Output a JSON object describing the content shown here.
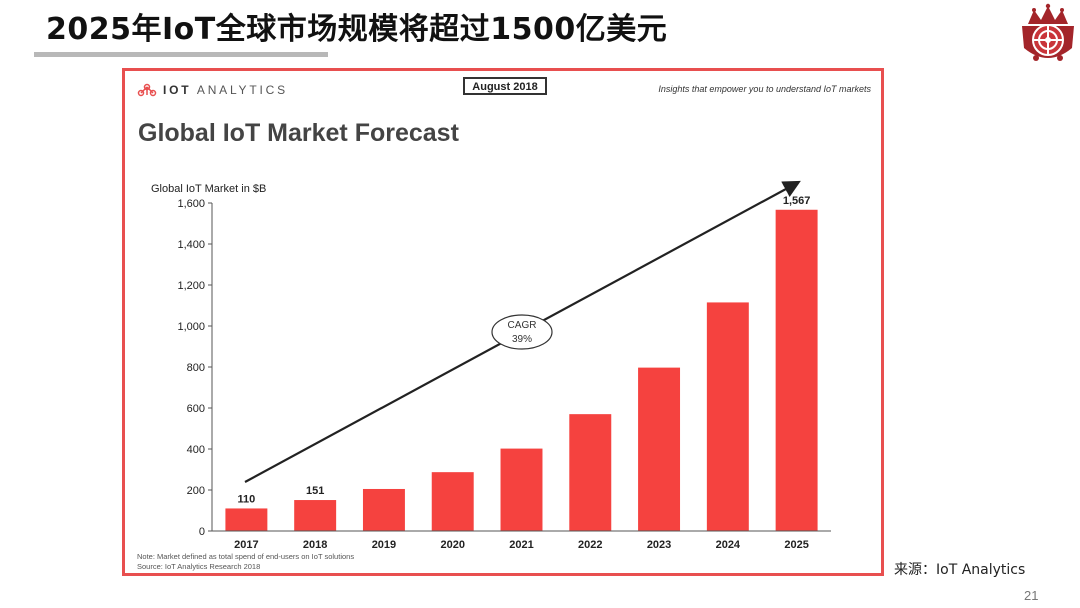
{
  "slide": {
    "title": "2025年IoT全球市场规模将超过1500亿美元",
    "source": "来源：IoT Analytics",
    "page_number": "21"
  },
  "panel": {
    "brand_bold": "IOT",
    "brand_rest": "ANALYTICS",
    "date_badge": "August 2018",
    "tagline": "Insights that empower you to understand IoT markets",
    "note_line1": "Note: Market defined as total spend of end-users on IoT solutions",
    "note_line2": "Source: IoT Analytics Research 2018"
  },
  "colors": {
    "bar": "#f5423f",
    "frame": "#e84f4f",
    "arrow": "#222222"
  },
  "chart_data": {
    "type": "bar",
    "title": "Global IoT Market Forecast",
    "ylabel": "Global IoT Market in $B",
    "xlabel": "",
    "categories": [
      "2017",
      "2018",
      "2019",
      "2020",
      "2021",
      "2022",
      "2023",
      "2024",
      "2025"
    ],
    "values": [
      110,
      151,
      205,
      287,
      402,
      570,
      797,
      1115,
      1567
    ],
    "data_labels": {
      "2017": "110",
      "2018": "151",
      "2025": "1,567"
    },
    "ylim": [
      0,
      1600
    ],
    "yticks": [
      0,
      200,
      400,
      600,
      800,
      1000,
      1200,
      1400,
      1600
    ],
    "ytick_labels": [
      "0",
      "200",
      "400",
      "600",
      "800",
      "1,000",
      "1,200",
      "1,400",
      "1,600"
    ],
    "annotation": {
      "line1": "CAGR",
      "line2": "39%"
    },
    "trend_arrow": true,
    "grid": false
  }
}
